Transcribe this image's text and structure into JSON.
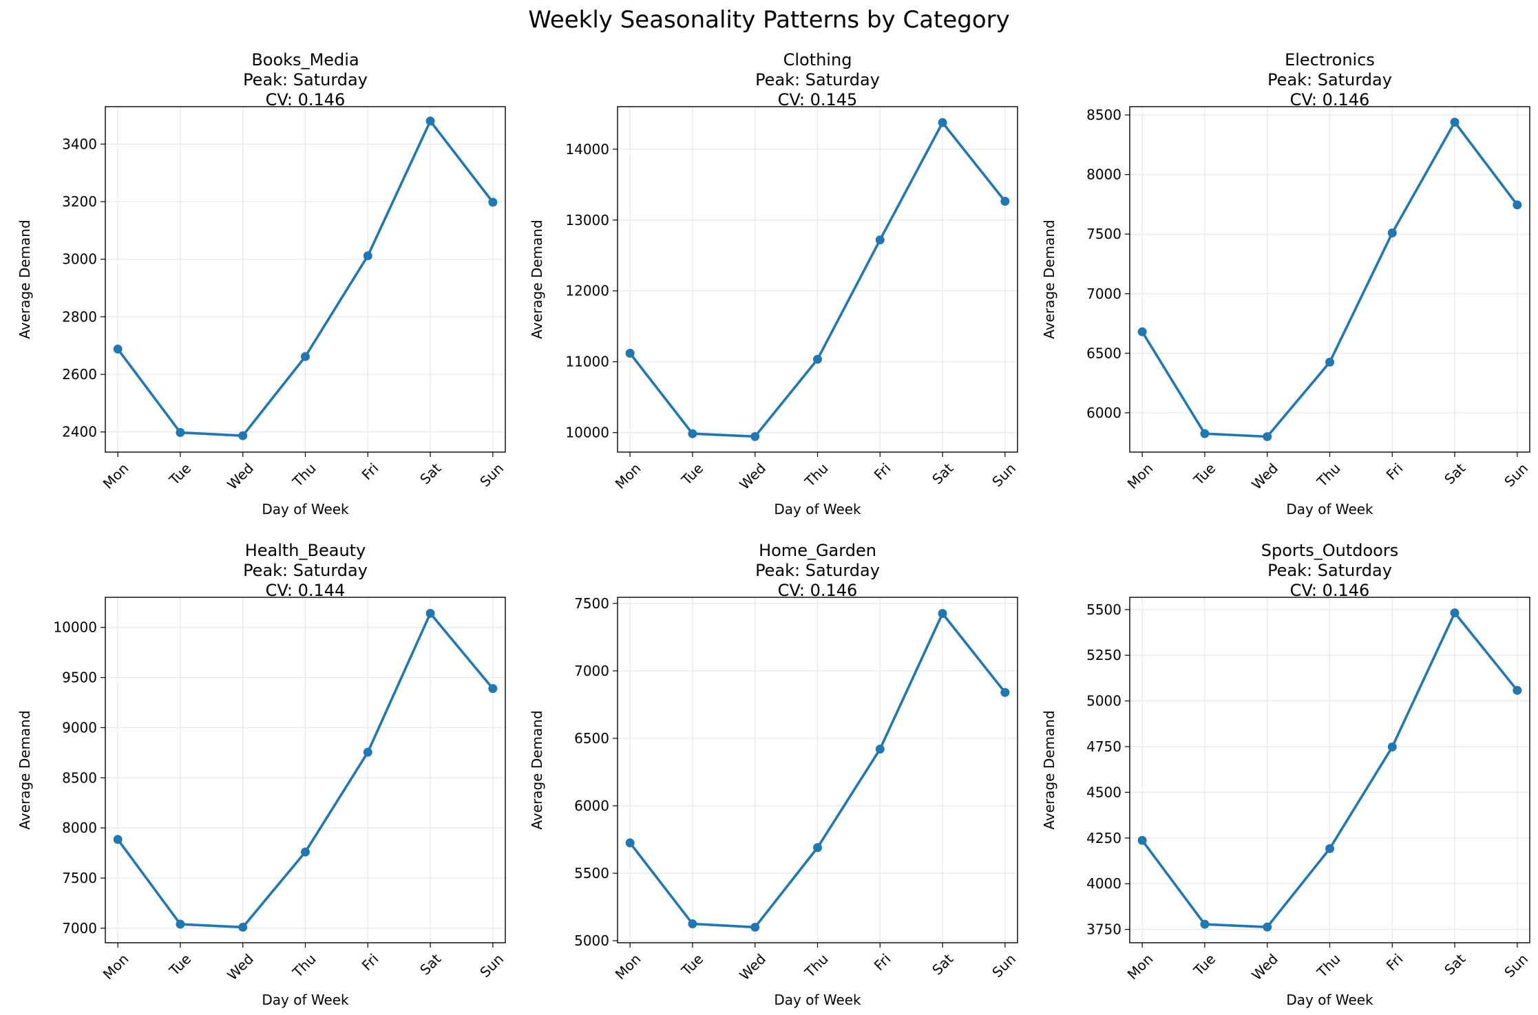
{
  "figure": {
    "title": "Weekly Seasonality Patterns by Category"
  },
  "chart_data": [
    {
      "type": "line",
      "title": "Books_Media",
      "subtitle": [
        "Peak: Saturday",
        "CV: 0.146"
      ],
      "xlabel": "Day of Week",
      "ylabel": "Average Demand",
      "categories": [
        "Mon",
        "Tue",
        "Wed",
        "Thu",
        "Fri",
        "Sat",
        "Sun"
      ],
      "values": [
        2688,
        2398,
        2387,
        2662,
        3012,
        3480,
        3198
      ],
      "ylim": [
        2330,
        3530
      ],
      "yticks": [
        2400,
        2600,
        2800,
        3000,
        3200,
        3400
      ],
      "ytick_labels": [
        "2400",
        "2600",
        "2800",
        "3000",
        "3200",
        "3400"
      ],
      "grid": true,
      "color": "#1f77b4"
    },
    {
      "type": "line",
      "title": "Clothing",
      "subtitle": [
        "Peak: Saturday",
        "CV: 0.145"
      ],
      "xlabel": "Day of Week",
      "ylabel": "Average Demand",
      "categories": [
        "Mon",
        "Tue",
        "Wed",
        "Thu",
        "Fri",
        "Sat",
        "Sun"
      ],
      "values": [
        11120,
        9985,
        9945,
        11035,
        12720,
        14375,
        13265
      ],
      "ylim": [
        9725,
        14600
      ],
      "yticks": [
        10000,
        11000,
        12000,
        13000,
        14000
      ],
      "ytick_labels": [
        "10000",
        "11000",
        "12000",
        "13000",
        "14000"
      ],
      "grid": true,
      "color": "#1f77b4"
    },
    {
      "type": "line",
      "title": "Electronics",
      "subtitle": [
        "Peak: Saturday",
        "CV: 0.146"
      ],
      "xlabel": "Day of Week",
      "ylabel": "Average Demand",
      "categories": [
        "Mon",
        "Tue",
        "Wed",
        "Thu",
        "Fri",
        "Sat",
        "Sun"
      ],
      "values": [
        6680,
        5825,
        5800,
        6425,
        7510,
        8440,
        7745
      ],
      "ylim": [
        5670,
        8570
      ],
      "yticks": [
        6000,
        6500,
        7000,
        7500,
        8000,
        8500
      ],
      "ytick_labels": [
        "6000",
        "6500",
        "7000",
        "7500",
        "8000",
        "8500"
      ],
      "grid": true,
      "color": "#1f77b4"
    },
    {
      "type": "line",
      "title": "Health_Beauty",
      "subtitle": [
        "Peak: Saturday",
        "CV: 0.144"
      ],
      "xlabel": "Day of Week",
      "ylabel": "Average Demand",
      "categories": [
        "Mon",
        "Tue",
        "Wed",
        "Thu",
        "Fri",
        "Sat",
        "Sun"
      ],
      "values": [
        7885,
        7040,
        7010,
        7760,
        8755,
        10140,
        9390
      ],
      "ylim": [
        6855,
        10300
      ],
      "yticks": [
        7000,
        7500,
        8000,
        8500,
        9000,
        9500,
        10000
      ],
      "ytick_labels": [
        "7000",
        "7500",
        "8000",
        "8500",
        "9000",
        "9500",
        "10000"
      ],
      "grid": true,
      "color": "#1f77b4"
    },
    {
      "type": "line",
      "title": "Home_Garden",
      "subtitle": [
        "Peak: Saturday",
        "CV: 0.146"
      ],
      "xlabel": "Day of Week",
      "ylabel": "Average Demand",
      "categories": [
        "Mon",
        "Tue",
        "Wed",
        "Thu",
        "Fri",
        "Sat",
        "Sun"
      ],
      "values": [
        5725,
        5125,
        5100,
        5690,
        6420,
        7425,
        6840
      ],
      "ylim": [
        4985,
        7545
      ],
      "yticks": [
        5000,
        5500,
        6000,
        6500,
        7000,
        7500
      ],
      "ytick_labels": [
        "5000",
        "5500",
        "6000",
        "6500",
        "7000",
        "7500"
      ],
      "grid": true,
      "color": "#1f77b4"
    },
    {
      "type": "line",
      "title": "Sports_Outdoors",
      "subtitle": [
        "Peak: Saturday",
        "CV: 0.146"
      ],
      "xlabel": "Day of Week",
      "ylabel": "Average Demand",
      "categories": [
        "Mon",
        "Tue",
        "Wed",
        "Thu",
        "Fri",
        "Sat",
        "Sun"
      ],
      "values": [
        4237,
        3778,
        3763,
        4192,
        4748,
        5482,
        5058
      ],
      "ylim": [
        3677,
        5567
      ],
      "yticks": [
        3750,
        4000,
        4250,
        4500,
        4750,
        5000,
        5250,
        5500
      ],
      "ytick_labels": [
        "3750",
        "4000",
        "4250",
        "4500",
        "4750",
        "5000",
        "5250",
        "5500"
      ],
      "grid": true,
      "color": "#1f77b4"
    }
  ]
}
